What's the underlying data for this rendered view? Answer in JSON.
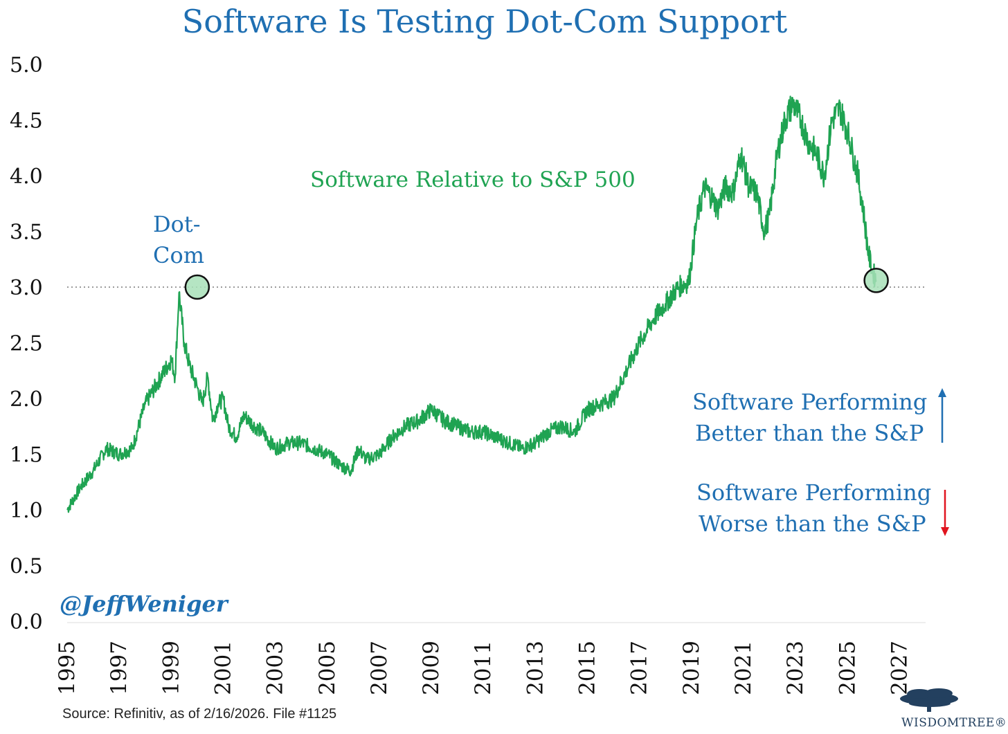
{
  "title": "Software Is Testing Dot-Com Support",
  "source": "Source: Refinitiv, as of 2/16/2026. File #1125",
  "handle": "@JeffWeniger",
  "brand": {
    "name": "WisdomTree",
    "name_display": "WISDOMTREE®",
    "color": "#23405f"
  },
  "annotations": {
    "dotcom_line1": "Dot-",
    "dotcom_line2": "Com",
    "series_label": "Software Relative to S&P 500",
    "better_line1": "Software Performing",
    "better_line2": "Better than the S&P",
    "worse_line1": "Software Performing",
    "worse_line2": "Worse than the S&P"
  },
  "colors": {
    "line": "#1fa352",
    "title": "#1f6fb2",
    "up_arrow": "#1f6fb2",
    "down_arrow": "#e0141e",
    "marker_fill": "#a8e0b8"
  },
  "chart_data": {
    "type": "line",
    "title": "Software Is Testing Dot-Com Support",
    "xlabel": "",
    "ylabel": "",
    "xlim": [
      1995,
      2028
    ],
    "ylim": [
      0,
      5
    ],
    "yticks": [
      "0.0",
      "0.5",
      "1.0",
      "1.5",
      "2.0",
      "2.5",
      "3.0",
      "3.5",
      "4.0",
      "4.5",
      "5.0"
    ],
    "xticks": [
      "1995",
      "1997",
      "1999",
      "2001",
      "2003",
      "2005",
      "2007",
      "2009",
      "2011",
      "2013",
      "2015",
      "2017",
      "2019",
      "2021",
      "2023",
      "2025",
      "2027"
    ],
    "support_level": 3.0,
    "grid": false,
    "legend": "none",
    "series": [
      {
        "name": "Software Relative to S&P 500",
        "x": [
          1995.0,
          1995.5,
          1996.0,
          1996.5,
          1997.0,
          1997.5,
          1998.0,
          1998.5,
          1999.0,
          1999.15,
          1999.3,
          1999.5,
          1999.7,
          2000.0,
          2000.2,
          2000.4,
          2000.6,
          2000.8,
          2001.0,
          2001.2,
          2001.5,
          2001.8,
          2002.0,
          2002.2,
          2002.5,
          2003.0,
          2003.5,
          2004.0,
          2004.5,
          2005.0,
          2005.5,
          2005.9,
          2006.2,
          2006.5,
          2007.0,
          2007.5,
          2008.0,
          2008.5,
          2009.0,
          2009.5,
          2010.0,
          2010.5,
          2011.0,
          2011.5,
          2012.0,
          2012.5,
          2013.0,
          2013.5,
          2014.0,
          2014.5,
          2015.0,
          2015.5,
          2016.0,
          2016.5,
          2017.0,
          2017.5,
          2018.0,
          2018.5,
          2018.9,
          2019.2,
          2019.5,
          2019.8,
          2020.0,
          2020.3,
          2020.6,
          2020.9,
          2021.2,
          2021.5,
          2021.8,
          2022.0,
          2022.3,
          2022.6,
          2022.9,
          2023.2,
          2023.5,
          2023.8,
          2024.1,
          2024.4,
          2024.7,
          2025.0,
          2025.2,
          2025.4,
          2025.6,
          2025.8,
          2025.95,
          2026.1
        ],
        "values": [
          1.0,
          1.2,
          1.35,
          1.55,
          1.5,
          1.55,
          1.95,
          2.15,
          2.35,
          2.2,
          2.95,
          2.5,
          2.3,
          2.1,
          1.95,
          2.2,
          1.8,
          1.95,
          2.0,
          1.75,
          1.65,
          1.85,
          1.8,
          1.75,
          1.7,
          1.55,
          1.6,
          1.6,
          1.55,
          1.5,
          1.4,
          1.35,
          1.55,
          1.45,
          1.5,
          1.65,
          1.75,
          1.8,
          1.9,
          1.8,
          1.75,
          1.7,
          1.7,
          1.65,
          1.6,
          1.55,
          1.6,
          1.7,
          1.75,
          1.7,
          1.9,
          1.95,
          2.0,
          2.25,
          2.5,
          2.7,
          2.85,
          3.0,
          3.05,
          3.6,
          3.9,
          3.8,
          3.7,
          3.9,
          3.85,
          4.2,
          3.9,
          3.85,
          3.5,
          3.65,
          4.2,
          4.5,
          4.65,
          4.5,
          4.3,
          4.2,
          4.0,
          4.5,
          4.6,
          4.4,
          4.2,
          4.0,
          3.7,
          3.3,
          3.15,
          3.06
        ]
      }
    ],
    "markers": [
      {
        "x": 2000.0,
        "y": 3.0,
        "label": "Dot-Com"
      },
      {
        "x": 2026.1,
        "y": 3.06,
        "label": ""
      }
    ]
  }
}
